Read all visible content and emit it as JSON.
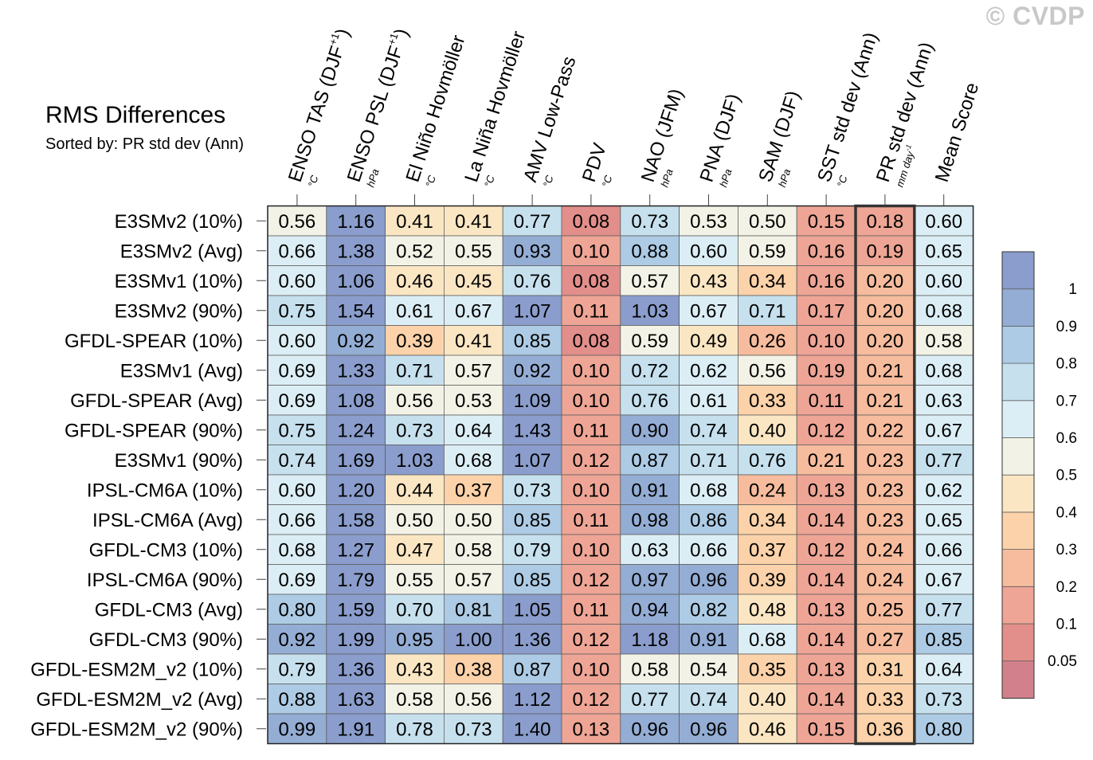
{
  "watermark": "© CVDP",
  "chart_data": {
    "type": "heatmap",
    "title": "RMS Differences",
    "subtitle": "Sorted by: PR std dev (Ann)",
    "columns": [
      {
        "label": "ENSO TAS (DJF",
        "sup": "+1",
        "label_end": ")",
        "unit": "°C"
      },
      {
        "label": "ENSO PSL (DJF",
        "sup": "+1",
        "label_end": ")",
        "unit": "hPa"
      },
      {
        "label": "El Niño Hovmöller",
        "unit": "°C"
      },
      {
        "label": "La Niña Hovmöller",
        "unit": "°C"
      },
      {
        "label": "AMV Low-Pass",
        "unit": "°C"
      },
      {
        "label": "PDV",
        "unit": "°C"
      },
      {
        "label": "NAO (JFM)",
        "unit": "hPa"
      },
      {
        "label": "PNA (DJF)",
        "unit": "hPa"
      },
      {
        "label": "SAM (DJF)",
        "unit": "hPa"
      },
      {
        "label": "SST std dev (Ann)",
        "unit": "°C"
      },
      {
        "label": "PR std dev (Ann)",
        "unit": "mm day",
        "unit_sup": "-1"
      },
      {
        "label": "Mean Score",
        "unit": ""
      }
    ],
    "rows": [
      "E3SMv2 (10%)",
      "E3SMv2 (Avg)",
      "E3SMv1 (10%)",
      "E3SMv2 (90%)",
      "GFDL-SPEAR (10%)",
      "E3SMv1 (Avg)",
      "GFDL-SPEAR (Avg)",
      "GFDL-SPEAR (90%)",
      "E3SMv1 (90%)",
      "IPSL-CM6A (10%)",
      "IPSL-CM6A (Avg)",
      "GFDL-CM3 (10%)",
      "IPSL-CM6A (90%)",
      "GFDL-CM3 (Avg)",
      "GFDL-CM3 (90%)",
      "GFDL-ESM2M_v2 (10%)",
      "GFDL-ESM2M_v2 (Avg)",
      "GFDL-ESM2M_v2 (90%)"
    ],
    "values": [
      [
        "0.56",
        "1.16",
        "0.41",
        "0.41",
        "0.77",
        "0.08",
        "0.73",
        "0.53",
        "0.50",
        "0.15",
        "0.18",
        "0.60"
      ],
      [
        "0.66",
        "1.38",
        "0.52",
        "0.55",
        "0.93",
        "0.10",
        "0.88",
        "0.60",
        "0.59",
        "0.16",
        "0.19",
        "0.65"
      ],
      [
        "0.60",
        "1.06",
        "0.46",
        "0.45",
        "0.76",
        "0.08",
        "0.57",
        "0.43",
        "0.34",
        "0.16",
        "0.20",
        "0.60"
      ],
      [
        "0.75",
        "1.54",
        "0.61",
        "0.67",
        "1.07",
        "0.11",
        "1.03",
        "0.67",
        "0.71",
        "0.17",
        "0.20",
        "0.68"
      ],
      [
        "0.60",
        "0.92",
        "0.39",
        "0.41",
        "0.85",
        "0.08",
        "0.59",
        "0.49",
        "0.26",
        "0.10",
        "0.20",
        "0.58"
      ],
      [
        "0.69",
        "1.33",
        "0.71",
        "0.57",
        "0.92",
        "0.10",
        "0.72",
        "0.62",
        "0.56",
        "0.19",
        "0.21",
        "0.68"
      ],
      [
        "0.69",
        "1.08",
        "0.56",
        "0.53",
        "1.09",
        "0.10",
        "0.76",
        "0.61",
        "0.33",
        "0.11",
        "0.21",
        "0.63"
      ],
      [
        "0.75",
        "1.24",
        "0.73",
        "0.64",
        "1.43",
        "0.11",
        "0.90",
        "0.74",
        "0.40",
        "0.12",
        "0.22",
        "0.67"
      ],
      [
        "0.74",
        "1.69",
        "1.03",
        "0.68",
        "1.07",
        "0.12",
        "0.87",
        "0.71",
        "0.76",
        "0.21",
        "0.23",
        "0.77"
      ],
      [
        "0.60",
        "1.20",
        "0.44",
        "0.37",
        "0.73",
        "0.10",
        "0.91",
        "0.68",
        "0.24",
        "0.13",
        "0.23",
        "0.62"
      ],
      [
        "0.66",
        "1.58",
        "0.50",
        "0.50",
        "0.85",
        "0.11",
        "0.98",
        "0.86",
        "0.34",
        "0.14",
        "0.23",
        "0.65"
      ],
      [
        "0.68",
        "1.27",
        "0.47",
        "0.58",
        "0.79",
        "0.10",
        "0.63",
        "0.66",
        "0.37",
        "0.12",
        "0.24",
        "0.66"
      ],
      [
        "0.69",
        "1.79",
        "0.55",
        "0.57",
        "0.85",
        "0.12",
        "0.97",
        "0.96",
        "0.39",
        "0.14",
        "0.24",
        "0.67"
      ],
      [
        "0.80",
        "1.59",
        "0.70",
        "0.81",
        "1.05",
        "0.11",
        "0.94",
        "0.82",
        "0.48",
        "0.13",
        "0.25",
        "0.77"
      ],
      [
        "0.92",
        "1.99",
        "0.95",
        "1.00",
        "1.36",
        "0.12",
        "1.18",
        "0.91",
        "0.68",
        "0.14",
        "0.27",
        "0.85"
      ],
      [
        "0.79",
        "1.36",
        "0.43",
        "0.38",
        "0.87",
        "0.10",
        "0.58",
        "0.54",
        "0.35",
        "0.13",
        "0.31",
        "0.64"
      ],
      [
        "0.88",
        "1.63",
        "0.58",
        "0.56",
        "1.12",
        "0.12",
        "0.77",
        "0.74",
        "0.40",
        "0.14",
        "0.33",
        "0.73"
      ],
      [
        "0.99",
        "1.91",
        "0.78",
        "0.73",
        "1.40",
        "0.13",
        "0.96",
        "0.96",
        "0.46",
        "0.15",
        "0.36",
        "0.80"
      ]
    ],
    "highlighted_column": "PR std dev (Ann)",
    "colorbar": {
      "levels": [
        "0.05",
        "0.1",
        "0.2",
        "0.3",
        "0.4",
        "0.5",
        "0.6",
        "0.7",
        "0.8",
        "0.9",
        "1"
      ],
      "colors": [
        "#d3808d",
        "#e28e8a",
        "#eea595",
        "#f6bc9d",
        "#fbd2a9",
        "#fbe6c3",
        "#f2f2e6",
        "#dceef5",
        "#c6e0ee",
        "#adcbe4",
        "#94add4",
        "#8a9dcc"
      ]
    }
  }
}
